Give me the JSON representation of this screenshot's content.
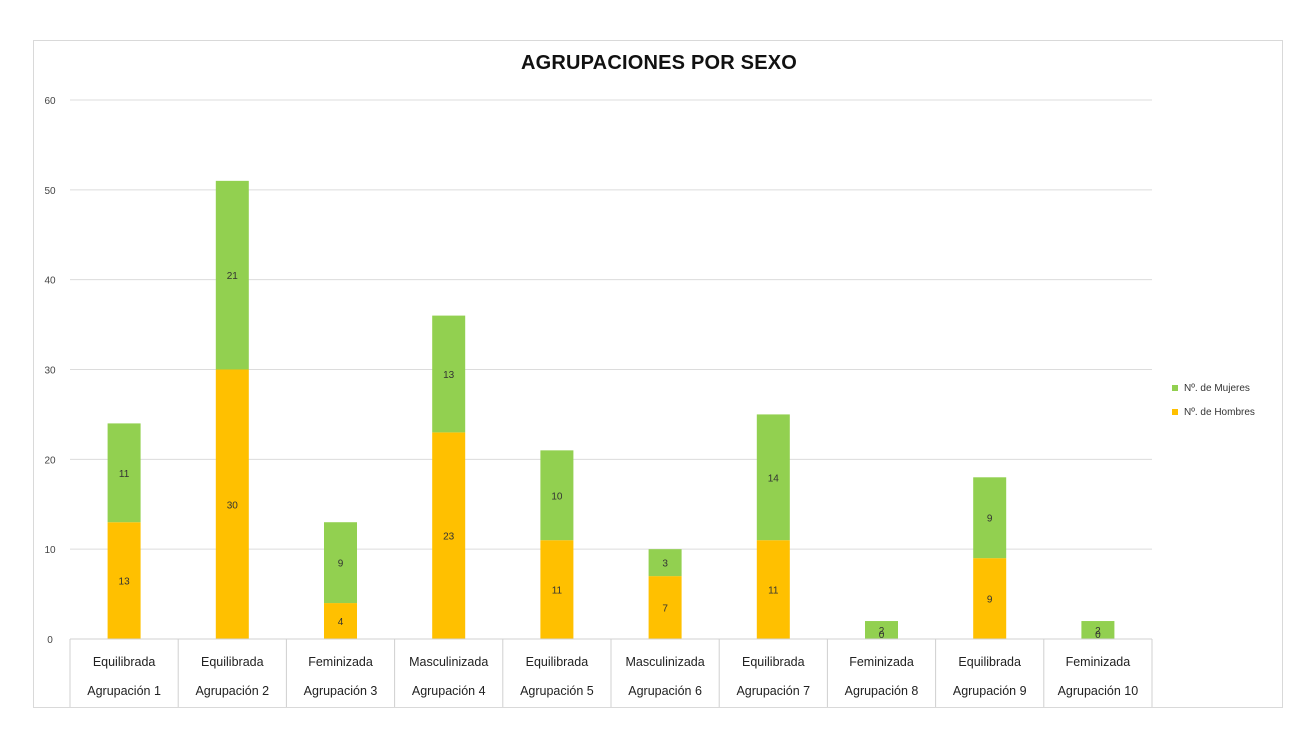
{
  "chart_data": {
    "type": "bar",
    "stacked": true,
    "title": "AGRUPACIONES POR SEXO",
    "xlabel": "",
    "ylabel": "",
    "ylim": [
      0,
      60
    ],
    "yticks": [
      "0",
      "10",
      "20",
      "30",
      "40",
      "50",
      "60"
    ],
    "grid": true,
    "legend_position": "right",
    "categories": [
      {
        "type": "Equilibrada",
        "name": "Agrupación 1"
      },
      {
        "type": "Equilibrada",
        "name": "Agrupación 2"
      },
      {
        "type": "Feminizada",
        "name": "Agrupación 3"
      },
      {
        "type": "Masculinizada",
        "name": "Agrupación 4"
      },
      {
        "type": "Equilibrada",
        "name": "Agrupación 5"
      },
      {
        "type": "Masculinizada",
        "name": "Agrupación 6"
      },
      {
        "type": "Equilibrada",
        "name": "Agrupación 7"
      },
      {
        "type": "Feminizada",
        "name": "Agrupación 8"
      },
      {
        "type": "Equilibrada",
        "name": "Agrupación 9"
      },
      {
        "type": "Feminizada",
        "name": "Agrupación 10"
      }
    ],
    "series": [
      {
        "name": "Nº. de Hombres",
        "color": "#ffc000",
        "values": [
          13,
          30,
          4,
          23,
          11,
          7,
          11,
          0,
          9,
          0
        ]
      },
      {
        "name": "Nº. de Mujeres",
        "color": "#92d050",
        "values": [
          11,
          21,
          9,
          13,
          10,
          3,
          14,
          2,
          9,
          2
        ]
      }
    ],
    "legend_order": [
      1,
      0
    ]
  }
}
